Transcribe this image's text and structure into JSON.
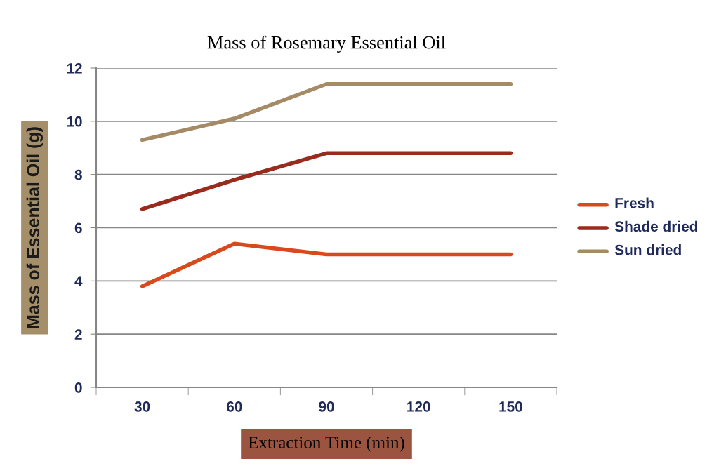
{
  "chart_data": {
    "type": "line",
    "title": "Mass of Rosemary Essential Oil",
    "xlabel": "Extraction Time (min)",
    "ylabel": "Mass of Essential Oil (g)",
    "categories": [
      "30",
      "60",
      "90",
      "120",
      "150"
    ],
    "series": [
      {
        "name": "Fresh",
        "color": "#d84a1b",
        "values": [
          3.8,
          5.4,
          5.0,
          5.0,
          5.0
        ]
      },
      {
        "name": "Shade dried",
        "color": "#9a2b1c",
        "values": [
          6.7,
          7.8,
          8.8,
          8.8,
          8.8
        ]
      },
      {
        "name": "Sun dried",
        "color": "#a48b66",
        "values": [
          9.3,
          10.1,
          11.4,
          11.4,
          11.4
        ]
      }
    ],
    "ylim": [
      0,
      12
    ],
    "yticks": [
      0,
      2,
      4,
      6,
      8,
      10,
      12
    ],
    "grid": "y",
    "legend": "right",
    "marker": "none",
    "line_style": "solid"
  }
}
